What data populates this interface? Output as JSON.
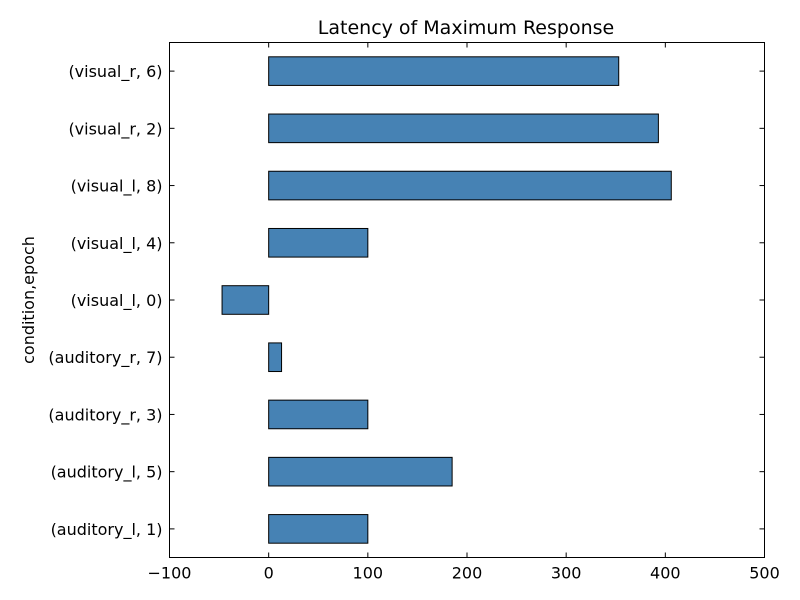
{
  "chart_data": {
    "type": "bar",
    "orientation": "horizontal",
    "title": "Latency of Maximum Response",
    "xlabel": "",
    "ylabel": "condition,epoch",
    "categories": [
      "(auditory_l, 1)",
      "(auditory_l, 5)",
      "(auditory_r, 3)",
      "(auditory_r, 7)",
      "(visual_l, 0)",
      "(visual_l, 4)",
      "(visual_l, 8)",
      "(visual_r, 2)",
      "(visual_r, 6)"
    ],
    "values": [
      100,
      185,
      100,
      13,
      -47,
      100,
      406,
      393,
      353
    ],
    "xlim": [
      -100,
      500
    ],
    "xticks": [
      -100,
      0,
      100,
      200,
      300,
      400,
      500
    ],
    "xtick_labels": [
      "−100",
      "0",
      "100",
      "200",
      "300",
      "400",
      "500"
    ],
    "bar_color": "#4682b4",
    "grid": false,
    "legend": "none"
  }
}
